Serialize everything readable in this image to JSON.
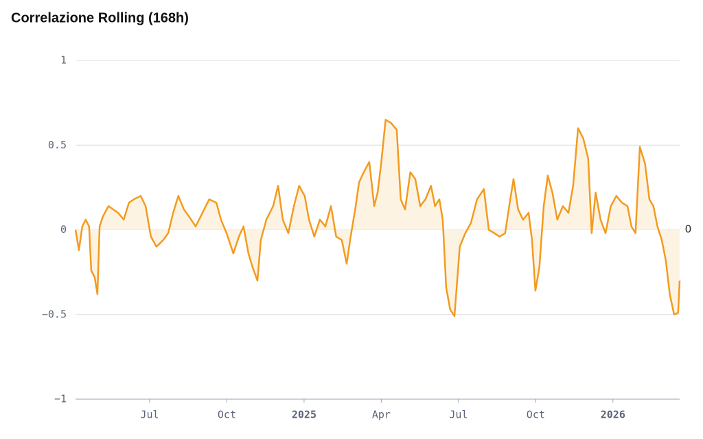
{
  "chart_data": {
    "type": "area-line",
    "title": "Correlazione Rolling (168h)",
    "x": [
      2024.26,
      2024.271,
      2024.282,
      2024.293,
      2024.304,
      2024.311,
      2024.322,
      2024.331,
      2024.338,
      2024.349,
      2024.367,
      2024.382,
      2024.398,
      2024.416,
      2024.433,
      2024.449,
      2024.471,
      2024.487,
      2024.504,
      2024.522,
      2024.544,
      2024.56,
      2024.576,
      2024.593,
      2024.611,
      2024.627,
      2024.649,
      2024.671,
      2024.693,
      2024.716,
      2024.731,
      2024.749,
      2024.771,
      2024.789,
      2024.804,
      2024.82,
      2024.833,
      2024.849,
      2024.86,
      2024.878,
      2024.9,
      2024.916,
      2024.931,
      2024.949,
      2024.967,
      2024.984,
      2025.002,
      2025.016,
      2025.033,
      2025.051,
      2025.069,
      2025.087,
      2025.104,
      2025.122,
      2025.138,
      2025.149,
      2025.167,
      2025.178,
      2025.193,
      2025.211,
      2025.227,
      2025.238,
      2025.249,
      2025.264,
      2025.282,
      2025.3,
      2025.313,
      2025.327,
      2025.344,
      2025.36,
      2025.376,
      2025.393,
      2025.411,
      2025.424,
      2025.438,
      2025.449,
      2025.46,
      2025.473,
      2025.487,
      2025.504,
      2025.522,
      2025.54,
      2025.56,
      2025.582,
      2025.598,
      2025.616,
      2025.633,
      2025.651,
      2025.664,
      2025.678,
      2025.693,
      2025.709,
      2025.727,
      2025.738,
      2025.749,
      2025.762,
      2025.776,
      2025.789,
      2025.804,
      2025.82,
      2025.838,
      2025.856,
      2025.871,
      2025.887,
      2025.904,
      2025.92,
      2025.931,
      2025.944,
      2025.96,
      2025.976,
      2025.993,
      2026.011,
      2026.029,
      2026.047,
      2026.06,
      2026.073,
      2026.087,
      2026.104,
      2026.118,
      2026.131,
      2026.144,
      2026.158,
      2026.171,
      2026.184,
      2026.198,
      2026.211,
      2026.216
    ],
    "values": [
      0,
      -0.12,
      0.02,
      0.06,
      0.02,
      -0.24,
      -0.28,
      -0.38,
      0.02,
      0.08,
      0.14,
      0.12,
      0.1,
      0.06,
      0.16,
      0.18,
      0.2,
      0.14,
      -0.04,
      -0.1,
      -0.06,
      -0.02,
      0.1,
      0.2,
      0.12,
      0.08,
      0.02,
      0.1,
      0.18,
      0.16,
      0.06,
      -0.02,
      -0.14,
      -0.04,
      0.02,
      -0.14,
      -0.22,
      -0.3,
      -0.06,
      0.06,
      0.14,
      0.26,
      0.06,
      -0.02,
      0.14,
      0.26,
      0.2,
      0.06,
      -0.04,
      0.06,
      0.02,
      0.14,
      -0.04,
      -0.06,
      -0.2,
      -0.06,
      0.14,
      0.28,
      0.34,
      0.4,
      0.14,
      0.22,
      0.38,
      0.65,
      0.63,
      0.59,
      0.18,
      0.12,
      0.34,
      0.3,
      0.14,
      0.18,
      0.26,
      0.14,
      0.18,
      0.06,
      -0.34,
      -0.47,
      -0.51,
      -0.1,
      -0.02,
      0.04,
      0.18,
      0.24,
      0,
      -0.02,
      -0.04,
      -0.02,
      0.14,
      0.3,
      0.12,
      0.06,
      0.1,
      -0.06,
      -0.36,
      -0.22,
      0.14,
      0.32,
      0.22,
      0.06,
      0.14,
      0.1,
      0.26,
      0.6,
      0.54,
      0.42,
      -0.02,
      0.22,
      0.06,
      -0.02,
      0.14,
      0.2,
      0.16,
      0.14,
      0.02,
      -0.02,
      0.49,
      0.39,
      0.18,
      0.14,
      0.02,
      -0.06,
      -0.18,
      -0.38,
      -0.5,
      -0.49,
      -0.3
    ],
    "color": "#f39b1f",
    "fill_color": "#fdf3e3",
    "xlim": [
      2024.26,
      2026.216
    ],
    "xticks": [
      {
        "value": 2024.5,
        "label": "Jul"
      },
      {
        "value": 2024.75,
        "label": "Oct"
      },
      2025,
      {
        "value": 2025.25,
        "label": "Apr"
      },
      {
        "value": 2025.5,
        "label": "Jul"
      },
      {
        "value": 2025.75,
        "label": "Oct"
      },
      2026
    ],
    "ylim": [
      -1,
      1
    ],
    "yticks": [
      1,
      0.5,
      0,
      {
        "value": -0.5,
        "label": "−0.5"
      },
      {
        "value": -1,
        "label": "−1"
      }
    ],
    "grid": true,
    "annotations": [
      {
        "y": 0,
        "text": "0"
      }
    ]
  }
}
